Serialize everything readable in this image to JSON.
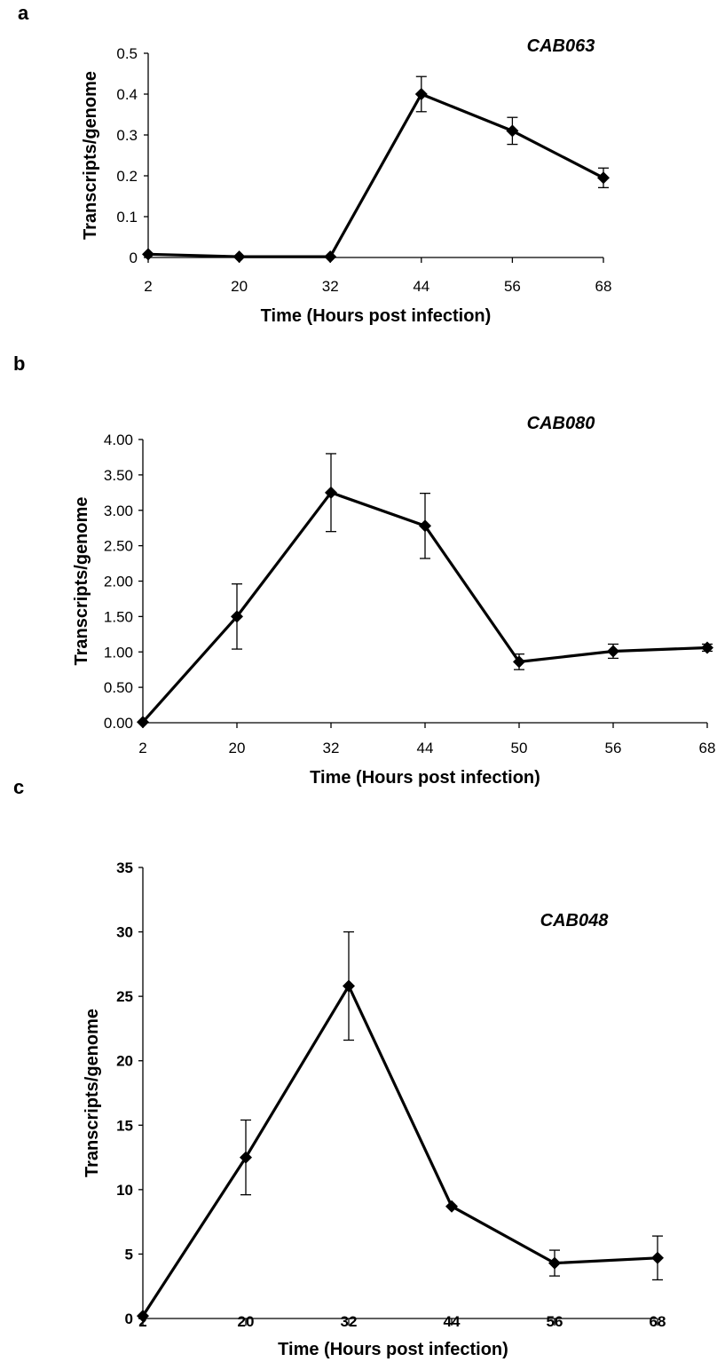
{
  "chart_data": [
    {
      "panel": "a",
      "type": "line",
      "title": "CAB063",
      "xlabel": "Time (Hours post infection)",
      "ylabel": "Transcripts/genome",
      "categories": [
        "2",
        "20",
        "32",
        "44",
        "56",
        "68"
      ],
      "yticks": [
        "0",
        "0.1",
        "0.2",
        "0.3",
        "0.4",
        "0.5"
      ],
      "ylim": [
        0,
        0.5
      ],
      "values": [
        0.008,
        0.002,
        0.002,
        0.4,
        0.31,
        0.195
      ],
      "error_bars": [
        null,
        null,
        null,
        0.043,
        0.033,
        0.024
      ],
      "grid": false
    },
    {
      "panel": "b",
      "type": "line",
      "title": "CAB080",
      "xlabel": "Time (Hours post infection)",
      "ylabel": "Transcripts/genome",
      "categories": [
        "2",
        "20",
        "32",
        "44",
        "50",
        "56",
        "68"
      ],
      "yticks": [
        "0.00",
        "0.50",
        "1.00",
        "1.50",
        "2.00",
        "2.50",
        "3.00",
        "3.50",
        "4.00"
      ],
      "ylim": [
        0,
        4
      ],
      "values": [
        0.01,
        1.5,
        3.25,
        2.78,
        0.86,
        1.01,
        1.06
      ],
      "error_bars": [
        null,
        0.46,
        0.55,
        0.46,
        0.11,
        0.1,
        0.05
      ],
      "grid": false
    },
    {
      "panel": "c",
      "type": "line",
      "title": "CAB048",
      "xlabel": "Time (Hours post infection)",
      "ylabel": "Transcripts/genome",
      "categories": [
        "2",
        "20",
        "32",
        "44",
        "56",
        "68"
      ],
      "yticks": [
        "0",
        "5",
        "10",
        "15",
        "20",
        "25",
        "30",
        "35"
      ],
      "ylim": [
        0,
        35
      ],
      "values": [
        0.2,
        12.5,
        25.8,
        8.7,
        4.3,
        4.7
      ],
      "error_bars": [
        null,
        2.9,
        4.2,
        null,
        1.0,
        1.7
      ],
      "grid": false
    }
  ]
}
